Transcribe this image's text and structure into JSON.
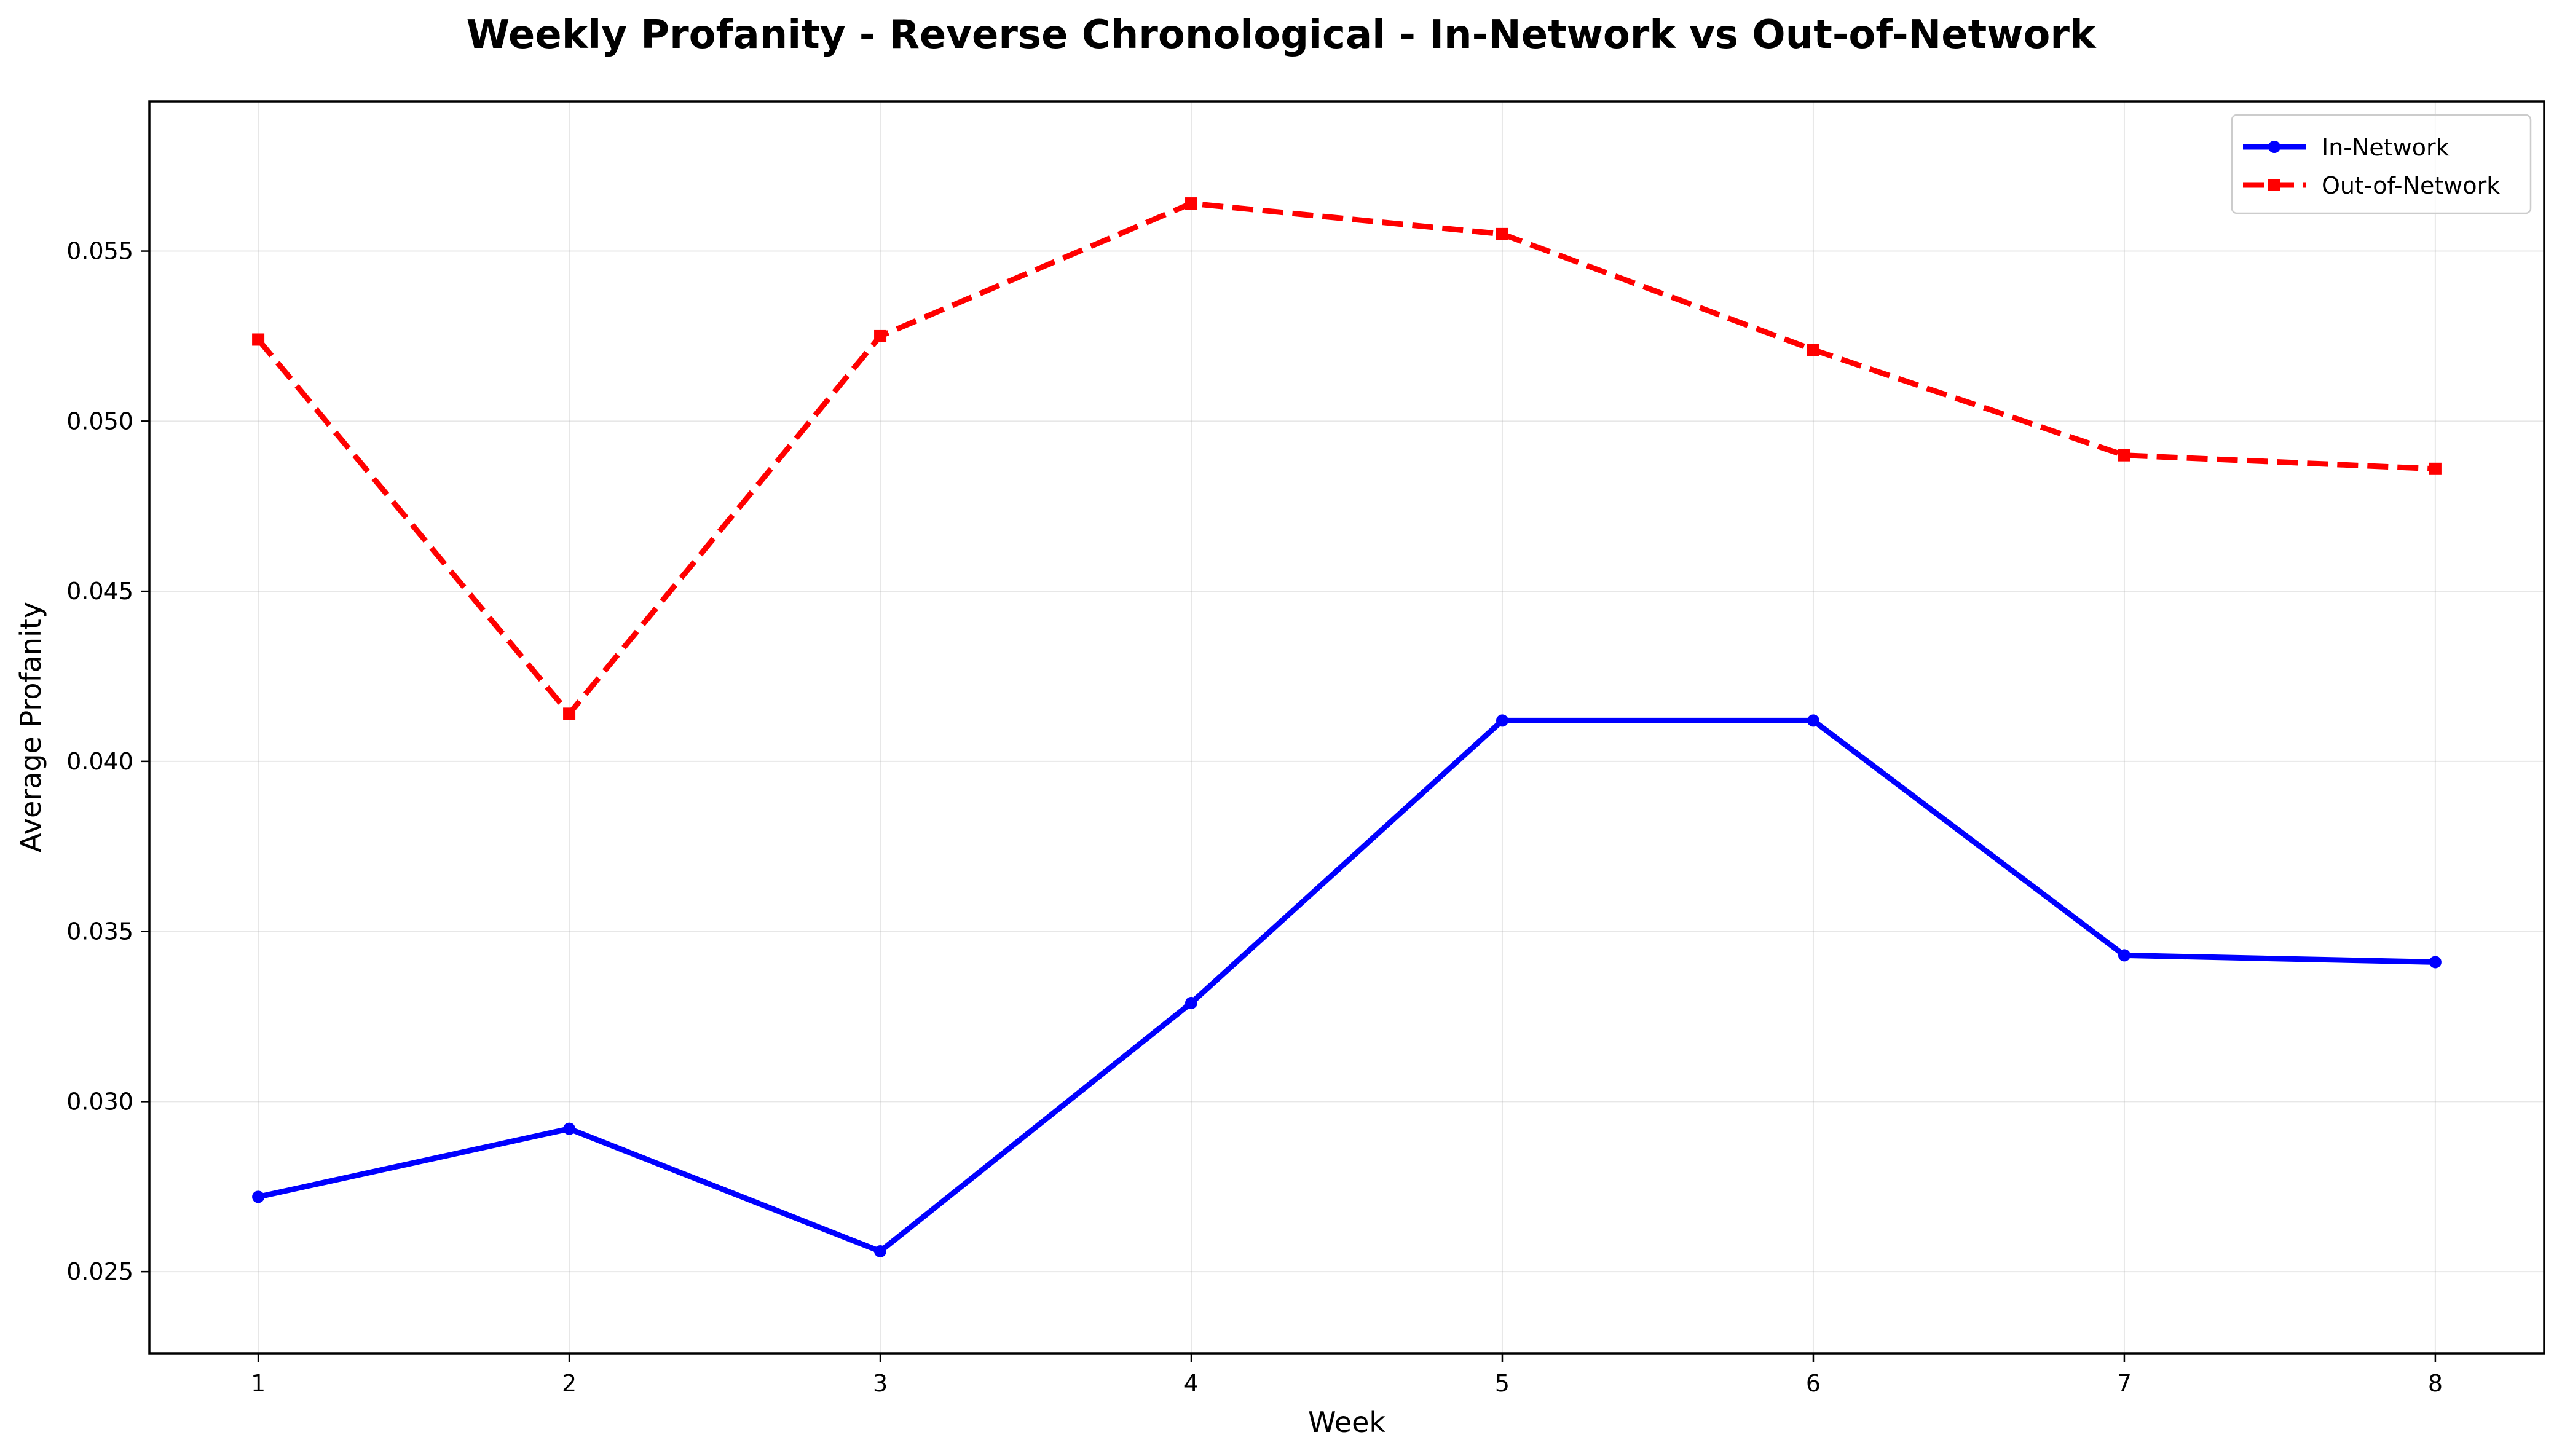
{
  "chart_data": {
    "type": "line",
    "title": "Weekly Profanity - Reverse Chronological - In-Network vs Out-of-Network",
    "xlabel": "Week",
    "ylabel": "Average Profanity",
    "x": [
      1,
      2,
      3,
      4,
      5,
      6,
      7,
      8
    ],
    "x_ticks": [
      "1",
      "2",
      "3",
      "4",
      "5",
      "6",
      "7",
      "8"
    ],
    "xlim": [
      0.65,
      8.35
    ],
    "ylim": [
      0.0226,
      0.0594
    ],
    "y_ticks": [
      "0.025",
      "0.030",
      "0.035",
      "0.040",
      "0.045",
      "0.050",
      "0.055"
    ],
    "y_tick_values": [
      0.025,
      0.03,
      0.035,
      0.04,
      0.045,
      0.05,
      0.055
    ],
    "grid": true,
    "legend_position": "top-right",
    "series": [
      {
        "name": "In-Network",
        "color": "#0000ff",
        "line_style": "solid",
        "marker": "circle",
        "values": [
          0.0272,
          0.0292,
          0.0256,
          0.0329,
          0.0412,
          0.0412,
          0.0343,
          0.0341
        ]
      },
      {
        "name": "Out-of-Network",
        "color": "#ff0000",
        "line_style": "dashed",
        "marker": "square",
        "values": [
          0.0524,
          0.0414,
          0.0525,
          0.0564,
          0.0555,
          0.0521,
          0.049,
          0.0486
        ]
      }
    ]
  }
}
